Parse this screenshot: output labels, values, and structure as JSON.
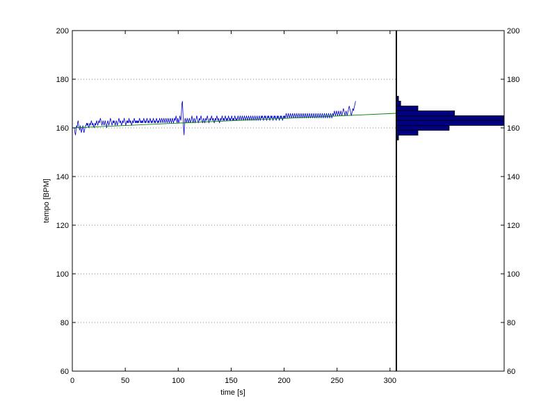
{
  "chart_data": {
    "type": "line",
    "title": "",
    "xlabel": "time [s]",
    "ylabel": "tempo [BPM]",
    "xlim": [
      0,
      306
    ],
    "ylim": [
      60,
      200
    ],
    "xticks": [
      0,
      50,
      100,
      150,
      200,
      250,
      300
    ],
    "yticks": [
      60,
      80,
      100,
      120,
      140,
      160,
      180,
      200
    ],
    "grid": "horizontal-dotted",
    "right_axis_ticks": [
      60,
      80,
      100,
      120,
      140,
      160,
      180,
      200
    ],
    "colors": {
      "tempo_line": "#0000cc",
      "trend_line": "#008000",
      "histogram_fill": "#000080",
      "divider": "#000000"
    },
    "series": [
      {
        "role": "tempo",
        "x_start": 2,
        "x_step": 0.5,
        "y": [
          160,
          158,
          157,
          159,
          161,
          160,
          162,
          163,
          161,
          160,
          159,
          161,
          160,
          158,
          159,
          160,
          161,
          159,
          158,
          159,
          160,
          161,
          161,
          162,
          161,
          162,
          161,
          160,
          161,
          162,
          161,
          162,
          163,
          162,
          161,
          162,
          161,
          160,
          161,
          162,
          161,
          162,
          163,
          162,
          161,
          162,
          163,
          162,
          163,
          164,
          163,
          162,
          161,
          162,
          163,
          162,
          161,
          162,
          163,
          162,
          161,
          160,
          162,
          163,
          162,
          161,
          162,
          163,
          164,
          163,
          162,
          161,
          162,
          163,
          162,
          163,
          162,
          161,
          162,
          163,
          162,
          161,
          162,
          163,
          164,
          163,
          162,
          163,
          162,
          161,
          162,
          163,
          162,
          163,
          164,
          163,
          162,
          161,
          162,
          163,
          162,
          163,
          162,
          164,
          163,
          162,
          163,
          162,
          161,
          162,
          163,
          162,
          163,
          164,
          163,
          162,
          163,
          162,
          163,
          162,
          163,
          162,
          163,
          164,
          163,
          162,
          163,
          162,
          163,
          162,
          163,
          164,
          163,
          162,
          163,
          162,
          163,
          164,
          163,
          162,
          163,
          162,
          163,
          164,
          163,
          162,
          163,
          162,
          163,
          164,
          163,
          162,
          163,
          162,
          163,
          164,
          163,
          162,
          163,
          162,
          163,
          164,
          163,
          162,
          163,
          164,
          163,
          162,
          163,
          164,
          163,
          162,
          163,
          164,
          163,
          162,
          163,
          164,
          163,
          162,
          163,
          164,
          163,
          162,
          163,
          164,
          163,
          162,
          163,
          164,
          163,
          164,
          165,
          163,
          162,
          164,
          163,
          162,
          163,
          165,
          164,
          163,
          166,
          170,
          171,
          166,
          160,
          157,
          162,
          164,
          163,
          162,
          163,
          164,
          163,
          162,
          163,
          164,
          163,
          162,
          163,
          164,
          165,
          163,
          162,
          163,
          164,
          163,
          162,
          163,
          164,
          165,
          164,
          163,
          162,
          163,
          164,
          163,
          164,
          165,
          164,
          163,
          162,
          163,
          164,
          163,
          162,
          163,
          164,
          163,
          164,
          165,
          164,
          163,
          162,
          163,
          164,
          163,
          164,
          165,
          164,
          163,
          164,
          163,
          162,
          163,
          164,
          163,
          164,
          165,
          164,
          163,
          164,
          163,
          162,
          163,
          164,
          163,
          164,
          165,
          164,
          163,
          164,
          163,
          164,
          165,
          164,
          163,
          164,
          163,
          164,
          165,
          164,
          163,
          164,
          163,
          164,
          165,
          164,
          163,
          164,
          163,
          164,
          165,
          164,
          163,
          164,
          163,
          164,
          165,
          164,
          163,
          164,
          165,
          164,
          163,
          164,
          165,
          164,
          163,
          164,
          165,
          164,
          163,
          164,
          165,
          164,
          163,
          164,
          165,
          164,
          163,
          164,
          165,
          164,
          163,
          164,
          165,
          164,
          163,
          164,
          165,
          164,
          163,
          164,
          165,
          164,
          163,
          164,
          165,
          164,
          163,
          164,
          165,
          164,
          165,
          164,
          163,
          164,
          165,
          164,
          165,
          164,
          163,
          164,
          165,
          164,
          165,
          164,
          163,
          164,
          165,
          164,
          165,
          164,
          163,
          164,
          165,
          164,
          165,
          164,
          163,
          164,
          165,
          164,
          165,
          164,
          163,
          164,
          165,
          164,
          165,
          164,
          163,
          164,
          165,
          164,
          165,
          164,
          165,
          166,
          165,
          164,
          165,
          166,
          165,
          164,
          165,
          166,
          165,
          164,
          165,
          166,
          165,
          164,
          165,
          166,
          165,
          164,
          165,
          166,
          165,
          164,
          165,
          166,
          165,
          164,
          165,
          166,
          165,
          164,
          165,
          166,
          165,
          164,
          165,
          166,
          165,
          164,
          165,
          166,
          165,
          164,
          165,
          166,
          165,
          164,
          165,
          166,
          165,
          164,
          165,
          166,
          165,
          164,
          165,
          166,
          165,
          164,
          165,
          166,
          165,
          164,
          165,
          166,
          165,
          164,
          165,
          166,
          165,
          164,
          165,
          166,
          165,
          164,
          165,
          166,
          165,
          164,
          165,
          166,
          165,
          164,
          165,
          166,
          165,
          164,
          165,
          166,
          165,
          166,
          167,
          166,
          165,
          166,
          167,
          166,
          165,
          166,
          167,
          166,
          165,
          166,
          167,
          166,
          165,
          166,
          167,
          168,
          167,
          166,
          165,
          166,
          167,
          166,
          165,
          166,
          167,
          168,
          169,
          168,
          167,
          166,
          165,
          166,
          167,
          168,
          167,
          168,
          169,
          170,
          171
        ]
      },
      {
        "role": "trend",
        "x": [
          0,
          306
        ],
        "y": [
          160,
          166
        ]
      }
    ],
    "histogram": {
      "orientation": "horizontal",
      "bin_edges": [
        155,
        157,
        159,
        161,
        163,
        165,
        167,
        169,
        171,
        173
      ],
      "relative_lengths": [
        0.02,
        0.2,
        0.49,
        1.0,
        1.0,
        0.54,
        0.2,
        0.04,
        0.02
      ]
    }
  }
}
